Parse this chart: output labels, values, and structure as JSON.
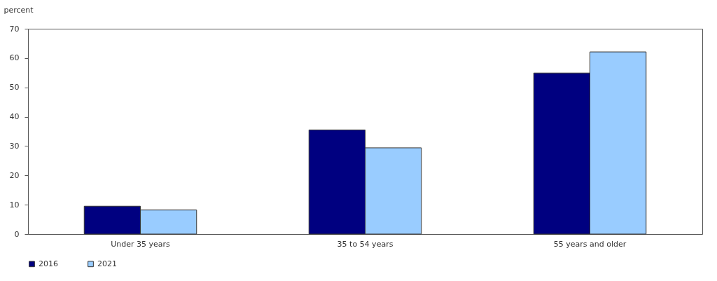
{
  "chart_data": {
    "type": "bar",
    "ylabel": "percent",
    "categories": [
      "Under 35 years",
      "35 to 54 years",
      "55 years and older"
    ],
    "series": [
      {
        "name": "2016",
        "color": "#000080",
        "values": [
          9.5,
          35.5,
          54.9
        ]
      },
      {
        "name": "2021",
        "color": "#99ccff",
        "values": [
          8.2,
          29.4,
          62.1
        ]
      }
    ],
    "ylim": [
      0,
      70
    ],
    "yticks": [
      0,
      10,
      20,
      30,
      40,
      50,
      60,
      70
    ],
    "grid": false,
    "legend": "bottom"
  }
}
